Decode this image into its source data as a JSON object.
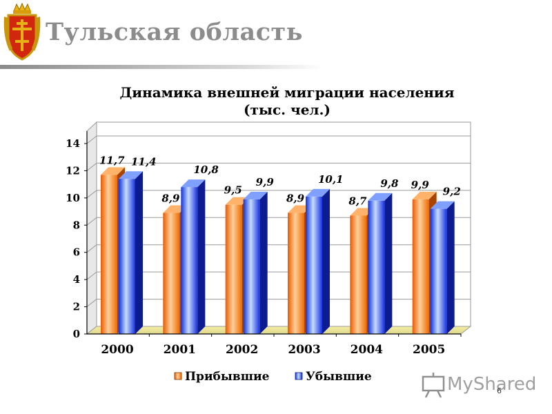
{
  "header": {
    "title": "Тульская  область",
    "emblem": "tula-coat-of-arms"
  },
  "chart_data": {
    "type": "bar",
    "title": "Динамика внешней миграции населения",
    "subtitle": "(тыс. чел.)",
    "categories": [
      "2000",
      "2001",
      "2002",
      "2003",
      "2004",
      "2005"
    ],
    "series": [
      {
        "name": "Прибывшие",
        "color": "#ff7a10",
        "values": [
          11.7,
          8.9,
          9.5,
          8.9,
          8.7,
          9.9
        ],
        "labels": [
          "11,7",
          "8,9",
          "9,5",
          "8,9",
          "8,7",
          "9,9"
        ]
      },
      {
        "name": "Убывшие",
        "color": "#1d3ff0",
        "values": [
          11.4,
          10.8,
          9.9,
          10.1,
          9.8,
          9.2
        ],
        "labels": [
          "11,4",
          "10,8",
          "9,9",
          "10,1",
          "9,8",
          "9,2"
        ]
      }
    ],
    "ylim": [
      0,
      14
    ],
    "yticks": [
      0,
      2,
      4,
      6,
      8,
      10,
      12,
      14
    ],
    "grid": true,
    "legend": "bottom"
  },
  "watermark": {
    "text": "MyShared",
    "page": "6"
  }
}
